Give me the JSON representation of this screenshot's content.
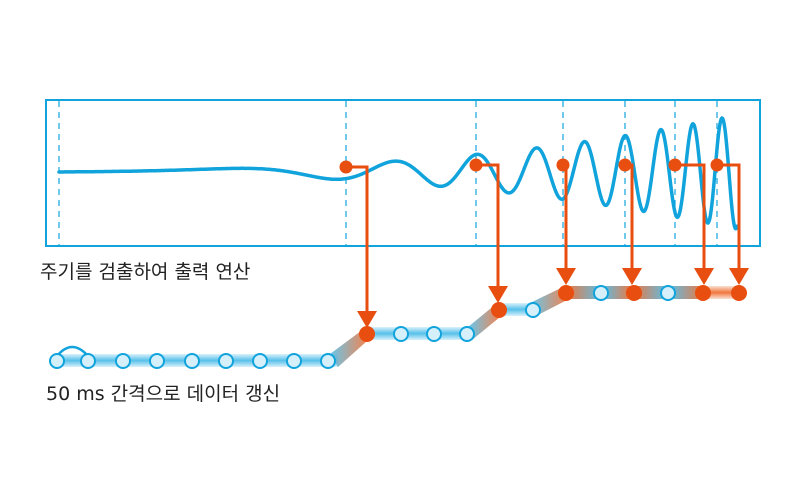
{
  "labels": {
    "top_caption": "주기를 검출하여 출력 연산",
    "bottom_caption": "50 ms 간격으로 데이터 갱신"
  },
  "colors": {
    "blue": "#11a3dc",
    "orange": "#e84e0f",
    "node_fill": "#d6f0fb",
    "background": "#ffffff"
  }
}
